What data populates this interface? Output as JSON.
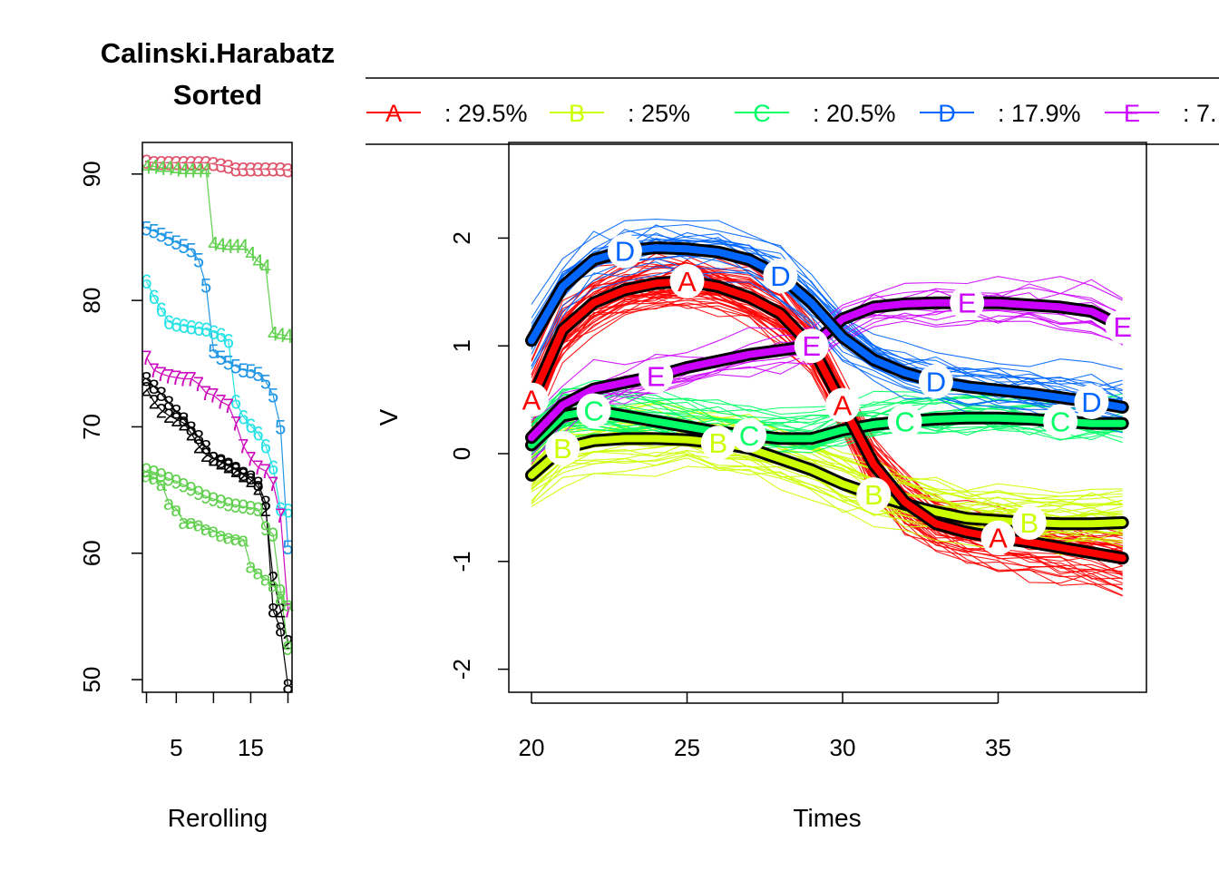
{
  "left_plot": {
    "title_line1": "Calinski.Harabatz",
    "title_line2": "Sorted",
    "xlabel": "Rerolling"
  },
  "right_plot": {
    "xlabel": "Times",
    "ylabel": "V"
  },
  "legend": [
    {
      "symbol": "A",
      "pct": ": 29.5%",
      "color": "#ff0000"
    },
    {
      "symbol": "B",
      "pct": ":   25%",
      "color": "#ccff00"
    },
    {
      "symbol": "C",
      "pct": ": 20.5%",
      "color": "#00ff66"
    },
    {
      "symbol": "D",
      "pct": ": 17.9%",
      "color": "#0066ff"
    },
    {
      "symbol": "E",
      "pct": ": 7.",
      "color": "#cc00ff"
    }
  ],
  "chart_data": [
    {
      "type": "line",
      "title": "Calinski.Harabatz Sorted",
      "xlabel": "Rerolling",
      "ylabel": "",
      "xlim": [
        1,
        20
      ],
      "ylim": [
        49,
        92.5
      ],
      "xticks": [
        5,
        15
      ],
      "yticks": [
        50,
        60,
        70,
        80,
        90
      ],
      "series": [
        {
          "name": "2",
          "color": "#000000",
          "values": [
            73,
            72,
            71.3,
            70.9,
            70.6,
            70.3,
            69.5,
            68.5,
            67.8,
            67.5,
            67.2,
            66.9,
            66.6,
            66.2,
            65.8,
            65.2,
            63.5,
            58,
            55.5,
            53
          ]
        },
        {
          "name": "3",
          "color": "#df536b",
          "values": [
            91,
            90.9,
            90.9,
            90.9,
            90.9,
            90.9,
            90.9,
            90.9,
            90.9,
            90.8,
            90.7,
            90.6,
            90.4,
            90.4,
            90.4,
            90.4,
            90.4,
            90.4,
            90.4,
            90.3
          ]
        },
        {
          "name": "4",
          "color": "#61d04f",
          "values": [
            90.6,
            90.6,
            90.5,
            90.5,
            90.4,
            90.3,
            90.3,
            90.3,
            90.3,
            84.5,
            84.4,
            84.3,
            84.3,
            84.3,
            83.7,
            83.1,
            82.7,
            77.4,
            77.3,
            77.2
          ]
        },
        {
          "name": "5",
          "color": "#2297e6",
          "values": [
            85.7,
            85.5,
            85.2,
            84.9,
            84.6,
            84.3,
            84,
            83.2,
            81.2,
            76,
            75.5,
            75.1,
            74.8,
            74.5,
            74.4,
            74.2,
            73.6,
            72.5,
            70,
            60.5
          ]
        },
        {
          "name": "6",
          "color": "#28e2e5",
          "values": [
            81.5,
            80.3,
            79.3,
            78.3,
            78.1,
            78,
            77.9,
            77.8,
            77.7,
            77.5,
            77.3,
            76.8,
            72,
            70.8,
            70.1,
            69.5,
            68.5,
            66.8,
            63.5,
            63.4
          ]
        },
        {
          "name": "7",
          "color": "#cd0bbc",
          "values": [
            75.5,
            74.5,
            74.2,
            74,
            73.9,
            73.8,
            73.8,
            73.4,
            72.7,
            72.5,
            72,
            71.7,
            70.3,
            68.5,
            67.5,
            66.8,
            66.5,
            65.5,
            63,
            55.5
          ]
        },
        {
          "name": "8",
          "color": "#000000",
          "values": [
            73.8,
            73.2,
            72.6,
            71.9,
            71.2,
            70.6,
            69.9,
            69.2,
            68.4,
            67.5,
            67.3,
            67,
            66.7,
            66.3,
            66,
            65.5,
            64,
            55.5,
            54,
            49.5
          ]
        },
        {
          "name": "9",
          "color": "#61d04f",
          "values": [
            66.6,
            66.4,
            66.2,
            65.9,
            65.7,
            65.4,
            65.1,
            64.8,
            64.5,
            64.3,
            64.1,
            63.9,
            63.8,
            63.7,
            63.6,
            63.5,
            62,
            61.5,
            57,
            52.5
          ]
        },
        {
          "name": "a",
          "color": "#61d04f",
          "values": [
            66.2,
            66,
            65.5,
            64,
            63.5,
            62.5,
            62.5,
            62.3,
            62,
            61.8,
            61.5,
            61.3,
            61.2,
            61.1,
            59,
            58.5,
            58,
            57.5,
            56.5,
            56
          ]
        }
      ]
    },
    {
      "type": "line",
      "title": "",
      "xlabel": "Times",
      "ylabel": "V",
      "xlim": [
        20,
        39
      ],
      "ylim": [
        -2.2,
        2.85
      ],
      "xticks": [
        20,
        25,
        30,
        35
      ],
      "yticks": [
        -2,
        -1,
        0,
        1,
        2
      ],
      "x": [
        20,
        21,
        22,
        23,
        24,
        25,
        26,
        27,
        28,
        29,
        30,
        31,
        32,
        33,
        34,
        35,
        36,
        37,
        38,
        39
      ],
      "series": [
        {
          "name": "A",
          "color": "#ff0000",
          "values": [
            0.5,
            1.15,
            1.4,
            1.52,
            1.58,
            1.6,
            1.55,
            1.45,
            1.3,
            1.0,
            0.45,
            -0.1,
            -0.45,
            -0.65,
            -0.73,
            -0.78,
            -0.82,
            -0.87,
            -0.92,
            -0.97
          ]
        },
        {
          "name": "B",
          "color": "#ccff00",
          "values": [
            -0.2,
            0.05,
            0.12,
            0.14,
            0.14,
            0.13,
            0.1,
            0.05,
            -0.05,
            -0.15,
            -0.28,
            -0.38,
            -0.47,
            -0.54,
            -0.6,
            -0.62,
            -0.64,
            -0.65,
            -0.65,
            -0.64
          ]
        },
        {
          "name": "C",
          "color": "#00ff66",
          "values": [
            0.08,
            0.35,
            0.4,
            0.35,
            0.3,
            0.25,
            0.2,
            0.17,
            0.14,
            0.14,
            0.22,
            0.27,
            0.3,
            0.32,
            0.33,
            0.33,
            0.32,
            0.3,
            0.28,
            0.28
          ]
        },
        {
          "name": "D",
          "color": "#0066ff",
          "values": [
            1.05,
            1.55,
            1.8,
            1.88,
            1.91,
            1.9,
            1.87,
            1.8,
            1.65,
            1.4,
            1.08,
            0.87,
            0.75,
            0.67,
            0.62,
            0.59,
            0.56,
            0.52,
            0.48,
            0.43
          ]
        },
        {
          "name": "E",
          "color": "#cc00ff",
          "values": [
            0.15,
            0.45,
            0.6,
            0.66,
            0.72,
            0.8,
            0.86,
            0.92,
            0.96,
            1.0,
            1.25,
            1.36,
            1.39,
            1.4,
            1.4,
            1.4,
            1.38,
            1.36,
            1.32,
            1.18
          ]
        }
      ],
      "series_labels": [
        {
          "name": "A",
          "x": [
            20,
            25,
            30,
            35
          ]
        },
        {
          "name": "B",
          "x": [
            21,
            26,
            31,
            36
          ]
        },
        {
          "name": "C",
          "x": [
            22,
            27,
            32,
            37
          ]
        },
        {
          "name": "D",
          "x": [
            23,
            28,
            33,
            38
          ]
        },
        {
          "name": "E",
          "x": [
            24,
            29,
            34,
            39
          ]
        }
      ]
    }
  ]
}
